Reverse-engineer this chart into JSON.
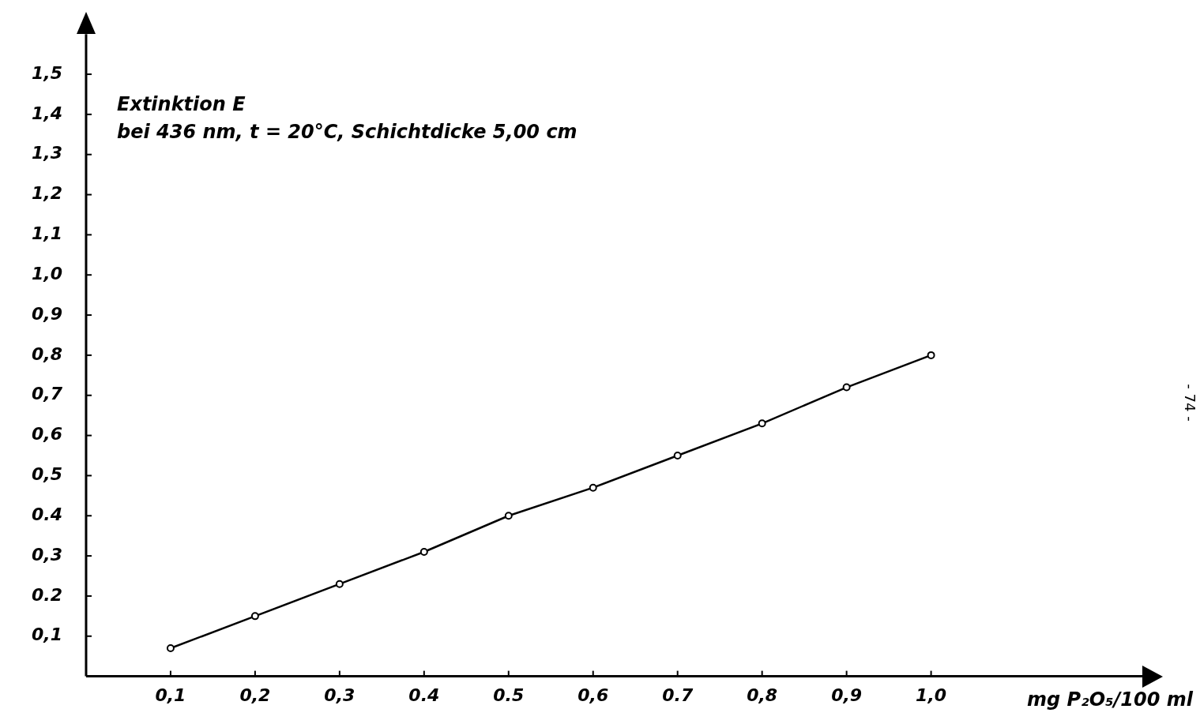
{
  "chart_data": {
    "type": "line",
    "ylabel": "Extinktion E",
    "subtitle": "bei 436 nm, t = 20°C, Schichtdicke 5,00 cm",
    "xlabel": "mg P₂O₅/100 ml",
    "annotations": [
      "- 74 -"
    ],
    "x": [
      0.1,
      0.2,
      0.3,
      0.4,
      0.5,
      0.6,
      0.7,
      0.8,
      0.9,
      1.0
    ],
    "series": [
      {
        "color": "#000000",
        "values": [
          0.07,
          0.15,
          0.23,
          0.31,
          0.4,
          0.47,
          0.55,
          0.63,
          0.72,
          0.8
        ]
      }
    ],
    "xlim": [
      0,
      1.25
    ],
    "ylim": [
      0,
      1.6
    ],
    "xticks": [
      {
        "value": 0.1,
        "label": "0,1"
      },
      {
        "value": 0.2,
        "label": "0,2"
      },
      {
        "value": 0.3,
        "label": "0,3"
      },
      0.4,
      0.5,
      {
        "value": 0.6,
        "label": "0,6"
      },
      0.7,
      {
        "value": 0.8,
        "label": "0,8"
      },
      {
        "value": 0.9,
        "label": "0,9"
      },
      {
        "value": 1.0,
        "label": "1,0"
      }
    ],
    "yticks": [
      {
        "value": 0.1,
        "label": "0,1"
      },
      0.2,
      {
        "value": 0.3,
        "label": "0,3"
      },
      0.4,
      {
        "value": 0.5,
        "label": "0,5"
      },
      {
        "value": 0.6,
        "label": "0,6"
      },
      {
        "value": 0.7,
        "label": "0,7"
      },
      {
        "value": 0.8,
        "label": "0,8"
      },
      {
        "value": 0.9,
        "label": "0,9"
      },
      {
        "value": 1.0,
        "label": "1,0"
      },
      {
        "value": 1.1,
        "label": "1,1"
      },
      {
        "value": 1.2,
        "label": "1,2"
      },
      {
        "value": 1.3,
        "label": "1,3"
      },
      {
        "value": 1.4,
        "label": "1,4"
      },
      {
        "value": 1.5,
        "label": "1,5"
      }
    ],
    "grid": false,
    "legend": false,
    "marker": "circle",
    "line_style": "solid"
  }
}
